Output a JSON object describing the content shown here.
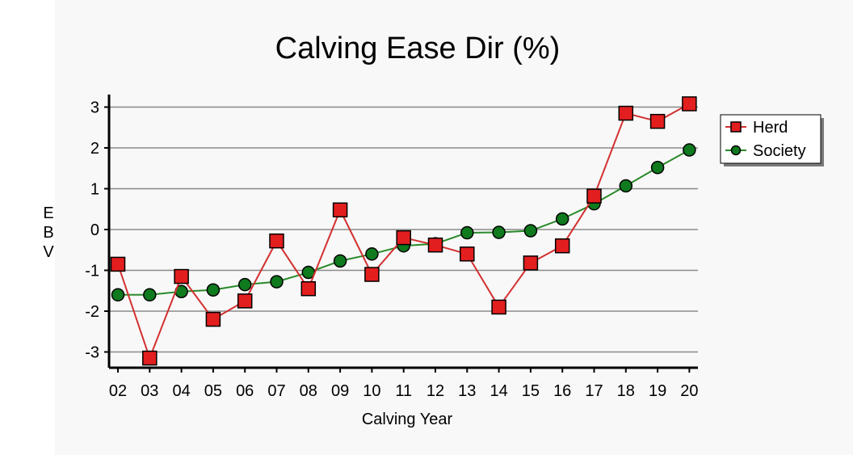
{
  "chart_data": {
    "type": "line",
    "title": "Calving Ease Dir (%)",
    "xlabel": "Calving Year",
    "ylabel": "EBV",
    "categories": [
      "02",
      "03",
      "04",
      "05",
      "06",
      "07",
      "08",
      "09",
      "10",
      "11",
      "12",
      "13",
      "14",
      "15",
      "16",
      "17",
      "18",
      "19",
      "20"
    ],
    "ylim": [
      -3.4,
      3.3
    ],
    "yticks": [
      3,
      2,
      1,
      0,
      -1,
      -2,
      -3
    ],
    "ytick_labels": [
      "3",
      "2",
      "1",
      "0",
      "-1",
      "-2",
      "-3"
    ],
    "grid": true,
    "legend_position": "top-right",
    "series": [
      {
        "name": "Herd",
        "marker": "square",
        "color": "#e31e1e",
        "line_color": "#d33030",
        "values": [
          -0.85,
          -3.15,
          -1.15,
          -2.2,
          -1.75,
          -0.28,
          -1.45,
          0.48,
          -1.1,
          -0.2,
          -0.38,
          -0.6,
          -1.9,
          -0.82,
          -0.4,
          0.82,
          2.85,
          2.65,
          3.08
        ]
      },
      {
        "name": "Society",
        "marker": "circle",
        "color": "#0f7a1e",
        "line_color": "#2a8a2a",
        "values": [
          -1.6,
          -1.6,
          -1.52,
          -1.48,
          -1.35,
          -1.28,
          -1.05,
          -0.77,
          -0.6,
          -0.4,
          -0.35,
          -0.08,
          -0.07,
          -0.03,
          0.26,
          0.63,
          1.07,
          1.52,
          1.95
        ]
      }
    ]
  }
}
